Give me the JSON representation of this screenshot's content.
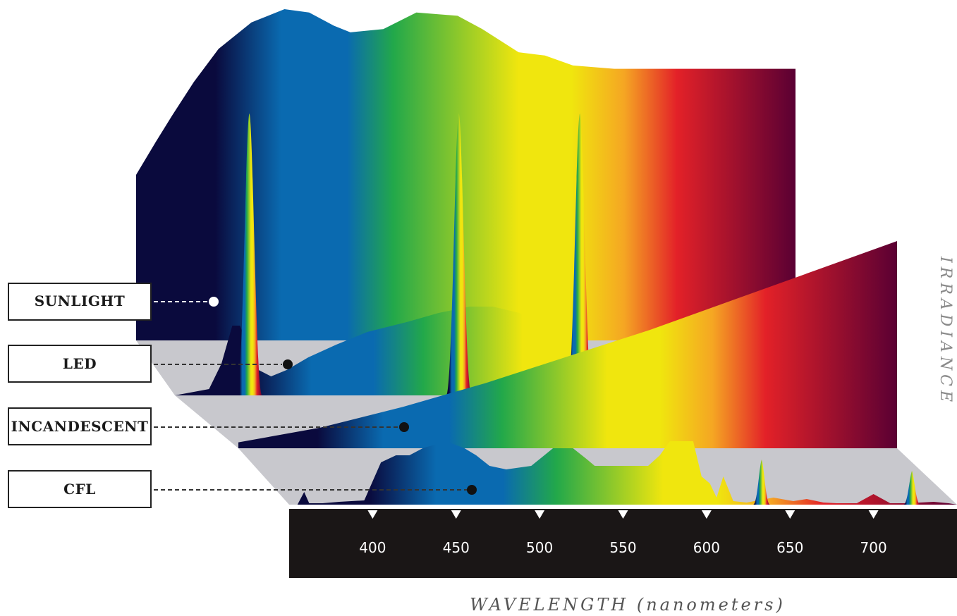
{
  "chart_data": {
    "type": "area",
    "title": "",
    "xlabel": "WAVELENGTH (nanometers)",
    "ylabel": "IRRADIANCE",
    "xlim": [
      350,
      750
    ],
    "x_ticks": [
      400,
      450,
      500,
      550,
      600,
      650,
      700
    ],
    "legend_placement": "left",
    "series": [
      {
        "name": "SUNLIGHT",
        "x": [
          350,
          362,
          372,
          385,
          400,
          420,
          440,
          455,
          470,
          480,
          500,
          520,
          545,
          560,
          582,
          598,
          615,
          640,
          665,
          690,
          720,
          735,
          750
        ],
        "y": [
          0.5,
          0.6,
          0.68,
          0.78,
          0.88,
          0.96,
          1.0,
          0.99,
          0.95,
          0.93,
          0.94,
          0.99,
          0.98,
          0.94,
          0.87,
          0.86,
          0.83,
          0.82,
          0.82,
          0.82,
          0.82,
          0.82,
          0.82
        ]
      },
      {
        "name": "LED",
        "x": [
          350,
          372,
          380,
          387,
          392,
          398,
          404,
          412,
          422,
          436,
          454,
          474,
          500,
          520,
          540,
          555,
          572,
          590,
          610,
          630,
          660,
          700,
          750
        ],
        "y": [
          0,
          0.05,
          0.25,
          0.55,
          0.55,
          0.35,
          0.2,
          0.15,
          0.2,
          0.3,
          0.4,
          0.5,
          0.58,
          0.65,
          0.7,
          0.7,
          0.65,
          0.55,
          0.4,
          0.25,
          0.1,
          0.05,
          0
        ]
      },
      {
        "name": "INCANDESCENT",
        "x": [
          350,
          400,
          450,
          500,
          550,
          600,
          650,
          700,
          750
        ],
        "y": [
          0.02,
          0.07,
          0.14,
          0.22,
          0.31,
          0.4,
          0.5,
          0.6,
          0.7
        ]
      },
      {
        "name": "CFL",
        "x": [
          350,
          355,
          359,
          362,
          366,
          370,
          380,
          395,
          405,
          414,
          422,
          430,
          444,
          455,
          462,
          470,
          480,
          495,
          508,
          520,
          528,
          533,
          540,
          556,
          565,
          572,
          578,
          582,
          588,
          592,
          597,
          602,
          606,
          610,
          616,
          624,
          640,
          652,
          660,
          670,
          678,
          690,
          700,
          710,
          720,
          736,
          745,
          750
        ],
        "y": [
          0,
          0,
          0.18,
          0.02,
          0.02,
          0.02,
          0.04,
          0.06,
          0.6,
          0.7,
          0.7,
          0.8,
          0.9,
          0.8,
          0.7,
          0.55,
          0.5,
          0.55,
          0.8,
          0.8,
          0.65,
          0.55,
          0.55,
          0.55,
          0.55,
          0.7,
          0.9,
          0.9,
          0.9,
          0.9,
          0.4,
          0.3,
          0.1,
          0.4,
          0.05,
          0.03,
          0.1,
          0.05,
          0.08,
          0.03,
          0.02,
          0.02,
          0.15,
          0.02,
          0.02,
          0.04,
          0.02,
          0
        ]
      }
    ],
    "spikes": [
      {
        "series": "LED",
        "x": 398,
        "y": 1.0
      },
      {
        "series": "LED",
        "x": 533,
        "y": 1.0
      },
      {
        "series": "LED",
        "x": 611,
        "y": 1.0
      },
      {
        "series": "CFL",
        "x": 633,
        "y": 0.4
      },
      {
        "series": "CFL",
        "x": 723,
        "y": 0.3
      }
    ]
  },
  "labels": {
    "sunlight": "SUNLIGHT",
    "led": "LED",
    "incandescent": "INCANDESCENT",
    "cfl": "CFL",
    "x_title": "WAVELENGTH (nanometers)",
    "y_title": "IRRADIANCE"
  },
  "colors": {
    "violet": "#0a0a3d",
    "blue": "#0a6ab0",
    "green": "#22a84a",
    "yellow": "#f0e60e",
    "orange": "#f5a623",
    "red": "#e32128",
    "maroon": "#5a0033",
    "floor": "#c8c8cd",
    "axis_band": "#1a1616"
  }
}
